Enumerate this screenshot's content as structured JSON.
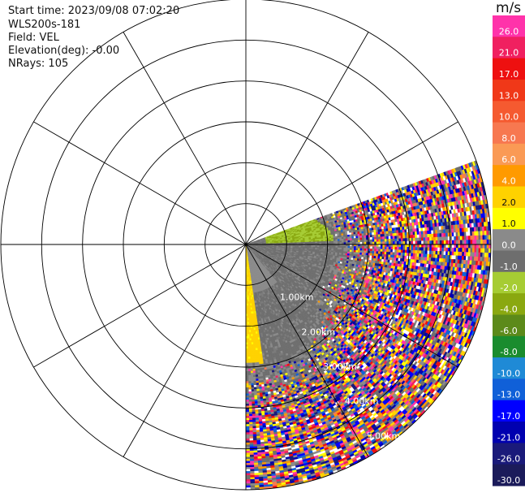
{
  "header": {
    "start_time": "Start time: 2023/09/08 07:02:20",
    "instrument": "WLS200s-181",
    "field": "Field: VEL",
    "elevation": "Elevation(deg): -0.00",
    "nrays": "NRays: 105"
  },
  "chart_data": {
    "type": "ppi",
    "field": "VEL",
    "units": "m/s",
    "range_rings_km": [
      1,
      2,
      3,
      4,
      5,
      6
    ],
    "range_labels": [
      "1.00km",
      "2.00km",
      "3.00km",
      "4.00km",
      "5.00km"
    ],
    "azimuth_spokes_deg": [
      0,
      30,
      60,
      90,
      120,
      150,
      180,
      210,
      240,
      270,
      300,
      330
    ],
    "max_range_km": 6.0,
    "scan_sector_deg": [
      70,
      180
    ],
    "colorbar": {
      "ticks": [
        "26.0",
        "21.0",
        "17.0",
        "13.0",
        "10.0",
        "8.0",
        "6.0",
        "4.0",
        "2.0",
        "1.0",
        "0.0",
        "-1.0",
        "-2.0",
        "-4.0",
        "-6.0",
        "-8.0",
        "-10.0",
        "-13.0",
        "-17.0",
        "-21.0",
        "-26.0",
        "-30.0"
      ],
      "colors": [
        "#ff33aa",
        "#f02060",
        "#ee1010",
        "#f03818",
        "#f55a30",
        "#f77850",
        "#fa9a55",
        "#ff9a00",
        "#ffd200",
        "#ffff00",
        "#8a8a8a",
        "#6e6e6e",
        "#a6cc33",
        "#8aa810",
        "#5c8a1a",
        "#1a8c2e",
        "#1f8ad6",
        "#1060d8",
        "#0000ff",
        "#0000b0",
        "#1a1a7a",
        "#1b1b5a"
      ]
    }
  }
}
